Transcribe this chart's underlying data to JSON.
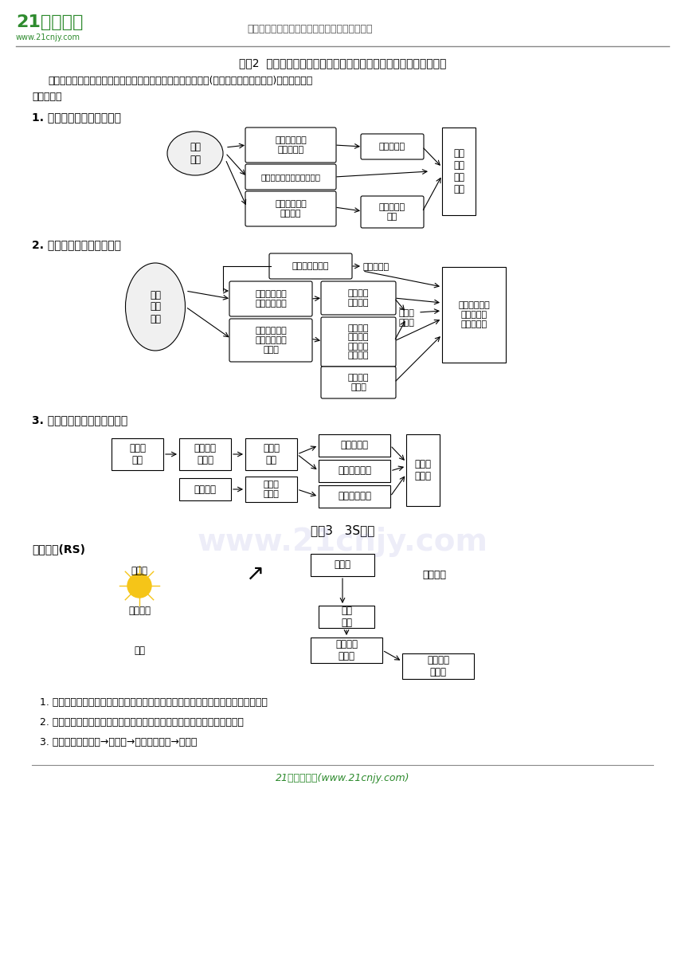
{
  "title_header": "中国最大型、最专业的中小学教育资源门户网站",
  "section_title": "考点2  区域不同发展阶段地理环境的影响（以长江中下游平原为例）",
  "intro_text": "随着人类社会的发展，同样的自然条件在区域的不同发展阶段(或不同的生产力条件下)对农业发展的\n影响不同。",
  "sub1_title": "1. 开发早期地理环境的影响",
  "sub2_title": "2. 农业社会地理环境的影响",
  "sub3_title": "3. 工商业社会地理环境的影响",
  "section3_title": "考点3   3S技术",
  "rs_title": "一、遥感(RS)",
  "concept1": "1. 概念：在航空器或航天器上利用一定的技术设备，对地表物体进行远距离的感知。",
  "concept2": "2. 遥感系统：包括遥感平台；传感器；遥感信息的接收和处理三大类仪器。",
  "concept3": "3. 主要环节：目标物→传感器→遥感地面系统→成果。",
  "footer": "21世纪教育网(www.21cnjy.com)",
  "watermark": "www.21cnjy.com",
  "bg_color": "#ffffff",
  "text_color": "#000000",
  "box_color": "#000000",
  "box_fill": "#ffffff",
  "ellipse_fill": "#e8e8e8"
}
